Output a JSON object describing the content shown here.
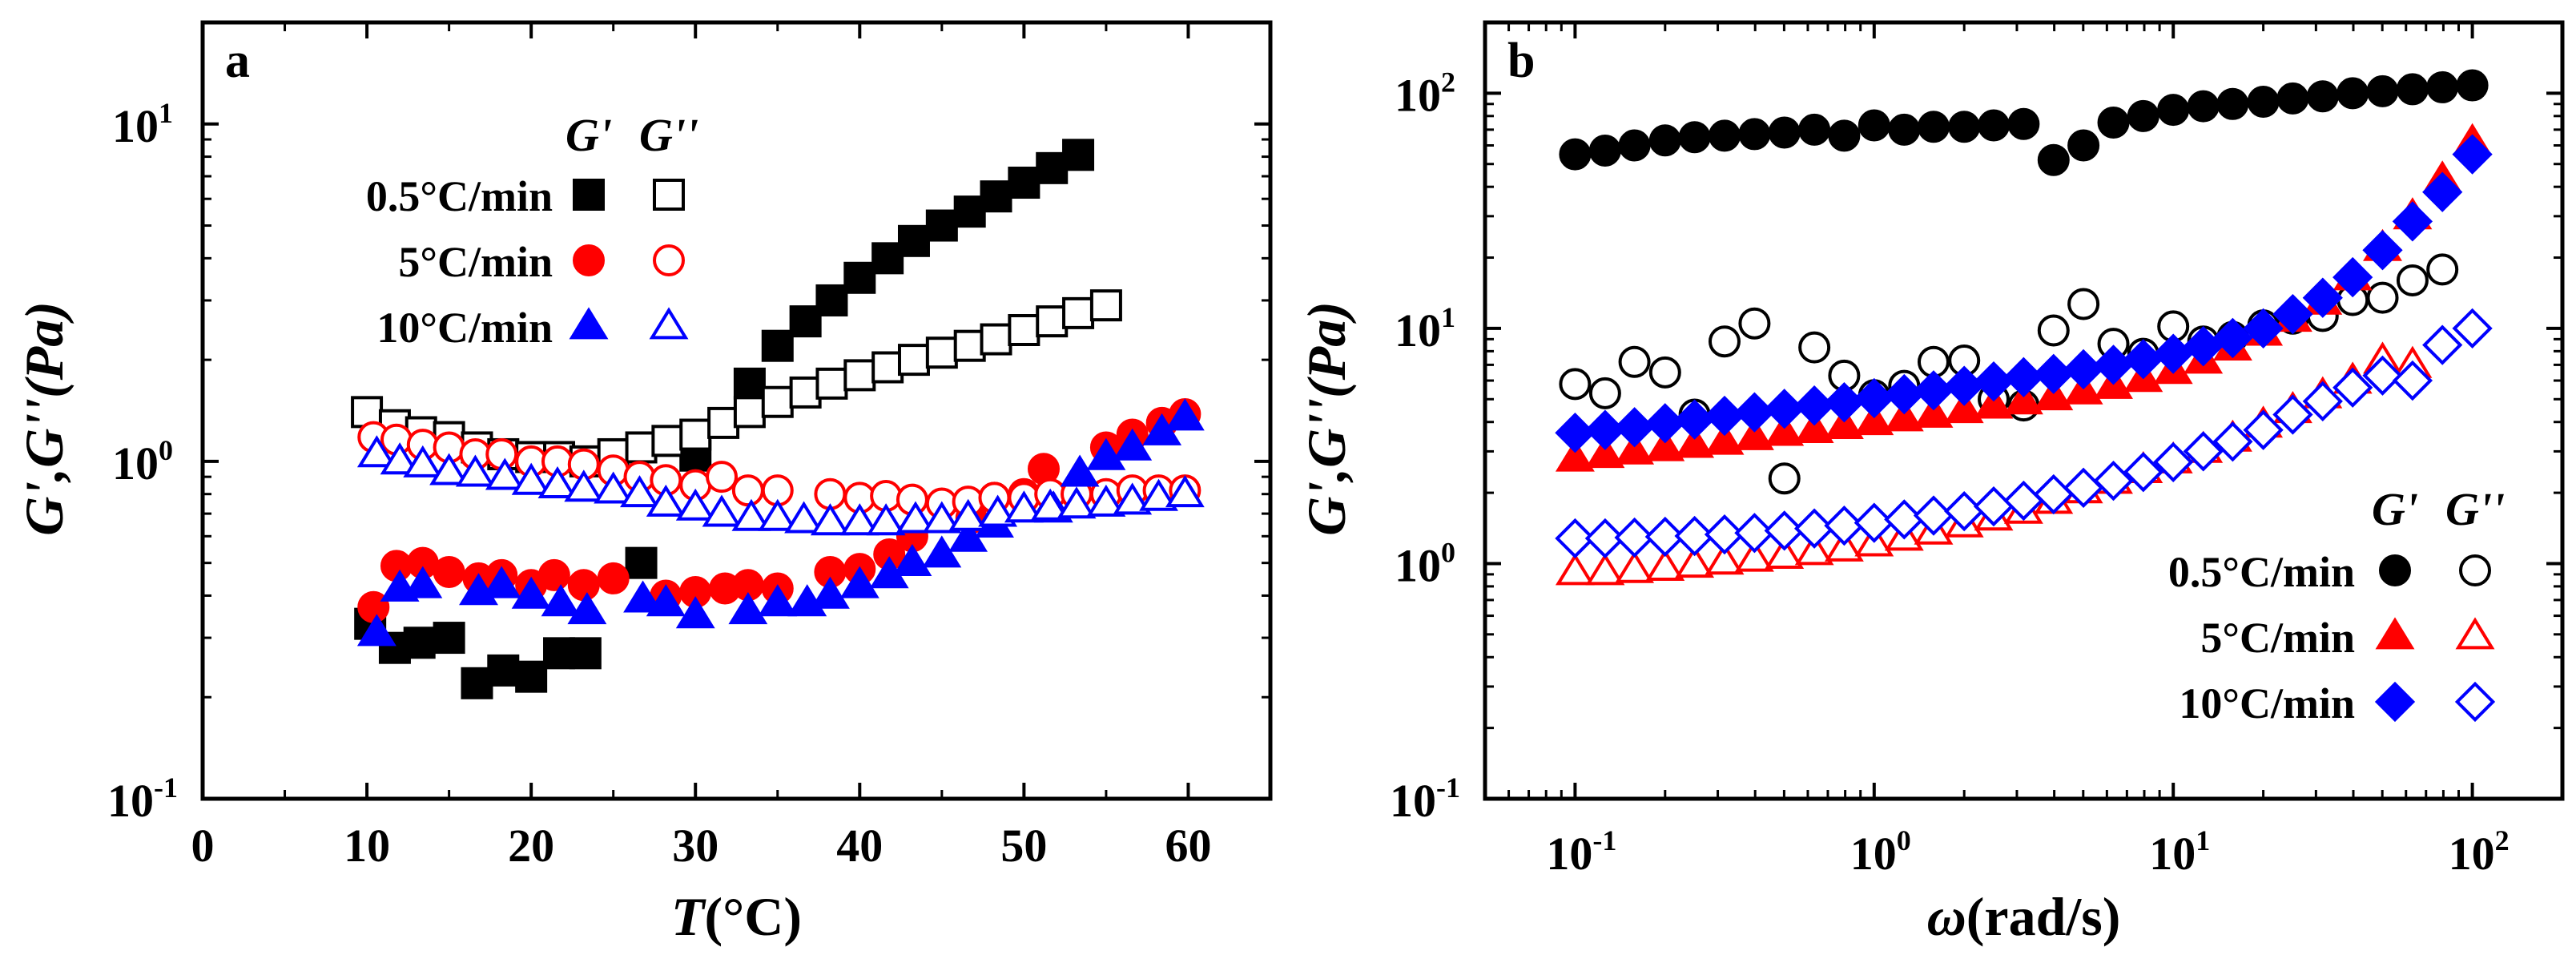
{
  "chart_data": [
    {
      "type": "scatter",
      "panel_label": "a",
      "xlabel_var": "T",
      "xlabel_unit": "(°C)",
      "ylabel": "G',G''(Pa)",
      "xscale": "linear",
      "yscale": "log",
      "xlim": [
        0,
        65
      ],
      "ylim": [
        0.1,
        20
      ],
      "xticks": [
        0,
        10,
        20,
        30,
        40,
        50,
        60
      ],
      "xtick_labels": [
        "0",
        "10",
        "20",
        "30",
        "40",
        "50",
        "60"
      ],
      "yticks": [
        0.1,
        1,
        10
      ],
      "ytick_labels": [
        {
          "base": "10",
          "exp": "-1"
        },
        {
          "base": "10",
          "exp": "0"
        },
        {
          "base": "10",
          "exp": "1"
        }
      ],
      "legend_headers": [
        "G'",
        "G''"
      ],
      "legend_position": "top-left",
      "series": [
        {
          "name": "0.5°C/min",
          "modulus": "G'",
          "marker": "square",
          "filled": true,
          "color": "#000000",
          "x": [
            10.2,
            11.7,
            13.2,
            15.0,
            16.7,
            18.3,
            20.0,
            21.7,
            23.3,
            26.7,
            30.0,
            33.3,
            35.0,
            36.7,
            38.3,
            40.0,
            41.7,
            43.3,
            45.0,
            46.7,
            48.3,
            50.0,
            51.7,
            53.3
          ],
          "y": [
            0.33,
            0.28,
            0.29,
            0.3,
            0.22,
            0.24,
            0.23,
            0.27,
            0.27,
            0.5,
            1.04,
            1.7,
            2.2,
            2.6,
            3.0,
            3.5,
            4.0,
            4.5,
            5.0,
            5.5,
            6.1,
            6.7,
            7.4,
            8.1
          ]
        },
        {
          "name": "0.5°C/min",
          "modulus": "G''",
          "marker": "square",
          "filled": false,
          "color": "#000000",
          "x": [
            10.0,
            11.7,
            13.3,
            15.0,
            16.7,
            18.3,
            20.0,
            21.7,
            23.3,
            25.0,
            26.7,
            28.3,
            30.0,
            31.7,
            33.3,
            35.0,
            36.7,
            38.3,
            40.0,
            41.7,
            43.3,
            45.0,
            46.7,
            48.3,
            50.0,
            51.7,
            53.3,
            55.0
          ],
          "y": [
            1.4,
            1.28,
            1.22,
            1.18,
            1.1,
            1.05,
            1.03,
            1.03,
            1.0,
            1.05,
            1.1,
            1.15,
            1.2,
            1.3,
            1.4,
            1.5,
            1.6,
            1.7,
            1.8,
            1.9,
            2.0,
            2.1,
            2.2,
            2.3,
            2.45,
            2.6,
            2.75,
            2.9
          ]
        },
        {
          "name": "5°C/min",
          "modulus": "G'",
          "marker": "circle",
          "filled": true,
          "color": "#ff0000",
          "x": [
            10.4,
            11.8,
            13.4,
            15.0,
            16.8,
            18.2,
            20.0,
            21.4,
            23.2,
            25.0,
            28.2,
            30.0,
            31.8,
            33.2,
            35.0,
            38.2,
            40.0,
            41.8,
            43.2,
            46.8,
            48.2,
            50.0,
            51.2,
            55.0,
            56.6,
            58.4,
            59.8
          ],
          "y": [
            0.37,
            0.49,
            0.5,
            0.47,
            0.45,
            0.46,
            0.43,
            0.46,
            0.43,
            0.45,
            0.4,
            0.41,
            0.42,
            0.43,
            0.42,
            0.47,
            0.48,
            0.53,
            0.6,
            0.68,
            0.78,
            0.8,
            0.95,
            1.1,
            1.2,
            1.3,
            1.38
          ]
        },
        {
          "name": "5°C/min",
          "modulus": "G''",
          "marker": "circle",
          "filled": false,
          "color": "#ff0000",
          "x": [
            10.4,
            11.8,
            13.4,
            15.0,
            16.6,
            18.2,
            20.0,
            21.6,
            23.2,
            25.0,
            26.6,
            28.2,
            30.0,
            31.6,
            33.2,
            35.0,
            38.2,
            40.0,
            41.6,
            43.2,
            45.0,
            46.6,
            48.2,
            50.0,
            51.6,
            53.2,
            55.0,
            56.6,
            58.2,
            59.8
          ],
          "y": [
            1.18,
            1.16,
            1.12,
            1.1,
            1.05,
            1.05,
            1.0,
            1.0,
            0.98,
            0.94,
            0.9,
            0.88,
            0.85,
            0.9,
            0.82,
            0.82,
            0.8,
            0.78,
            0.79,
            0.77,
            0.75,
            0.76,
            0.78,
            0.78,
            0.8,
            0.8,
            0.8,
            0.82,
            0.82,
            0.82
          ]
        },
        {
          "name": "10°C/min",
          "modulus": "G'",
          "marker": "triangle",
          "filled": true,
          "color": "#0000ff",
          "x": [
            10.6,
            12.0,
            13.4,
            16.8,
            18.2,
            20.0,
            21.8,
            23.4,
            26.8,
            28.2,
            30.0,
            33.2,
            35.0,
            36.8,
            38.2,
            40.0,
            41.8,
            43.2,
            45.0,
            46.6,
            48.2,
            51.8,
            53.4,
            55.0,
            56.6,
            58.4,
            59.8
          ],
          "y": [
            0.31,
            0.42,
            0.43,
            0.41,
            0.43,
            0.4,
            0.38,
            0.36,
            0.39,
            0.38,
            0.35,
            0.36,
            0.38,
            0.38,
            0.4,
            0.43,
            0.46,
            0.5,
            0.53,
            0.59,
            0.65,
            0.72,
            0.92,
            1.03,
            1.1,
            1.22,
            1.35
          ]
        },
        {
          "name": "10°C/min",
          "modulus": "G''",
          "marker": "triangle",
          "filled": false,
          "color": "#0000ff",
          "x": [
            10.6,
            12.0,
            13.4,
            15.0,
            16.6,
            18.4,
            20.0,
            21.6,
            23.2,
            25.0,
            26.6,
            28.2,
            30.0,
            31.6,
            33.4,
            35.0,
            36.6,
            38.2,
            40.0,
            41.6,
            43.4,
            45.0,
            46.6,
            48.4,
            50.0,
            51.6,
            53.2,
            55.0,
            56.6,
            58.2,
            59.8
          ],
          "y": [
            1.05,
            1.0,
            0.98,
            0.93,
            0.92,
            0.9,
            0.87,
            0.85,
            0.83,
            0.82,
            0.8,
            0.75,
            0.73,
            0.7,
            0.68,
            0.68,
            0.67,
            0.66,
            0.66,
            0.66,
            0.67,
            0.67,
            0.68,
            0.7,
            0.72,
            0.73,
            0.74,
            0.75,
            0.76,
            0.78,
            0.8
          ]
        }
      ]
    },
    {
      "type": "scatter",
      "panel_label": "b",
      "xlabel_var": "ω",
      "xlabel_unit": "(rad/s)",
      "ylabel": "G',G''(Pa)",
      "xscale": "log",
      "yscale": "log",
      "xlim": [
        0.05,
        200
      ],
      "ylim": [
        0.1,
        200
      ],
      "xticks": [
        0.1,
        1,
        10,
        100
      ],
      "xtick_labels": [
        {
          "base": "10",
          "exp": "-1"
        },
        {
          "base": "10",
          "exp": "0"
        },
        {
          "base": "10",
          "exp": "1"
        },
        {
          "base": "10",
          "exp": "2"
        }
      ],
      "yticks": [
        0.1,
        1,
        10,
        100
      ],
      "ytick_labels": [
        {
          "base": "10",
          "exp": "-1"
        },
        {
          "base": "10",
          "exp": "0"
        },
        {
          "base": "10",
          "exp": "1"
        },
        {
          "base": "10",
          "exp": "2"
        }
      ],
      "legend_headers": [
        "G'",
        "G''"
      ],
      "legend_position": "bottom-right",
      "series": [
        {
          "name": "0.5°C/min",
          "modulus": "G'",
          "marker": "circle",
          "filled": true,
          "color": "#000000",
          "x": [
            0.1,
            0.126,
            0.158,
            0.2,
            0.251,
            0.316,
            0.398,
            0.501,
            0.631,
            0.794,
            1.0,
            1.26,
            1.58,
            2.0,
            2.51,
            3.16,
            3.98,
            5.01,
            6.31,
            7.94,
            10.0,
            12.6,
            15.8,
            20.0,
            25.1,
            31.6,
            39.8,
            50.1,
            63.1,
            79.4,
            100
          ],
          "y": [
            55,
            57,
            60,
            63,
            65,
            66,
            67,
            68,
            70,
            66,
            73,
            70,
            72,
            72,
            73,
            74,
            52,
            60,
            75,
            80,
            85,
            88,
            90,
            92,
            95,
            97,
            100,
            102,
            104,
            106,
            108
          ]
        },
        {
          "name": "0.5°C/min",
          "modulus": "G''",
          "marker": "circle",
          "filled": false,
          "color": "#000000",
          "x": [
            0.1,
            0.126,
            0.158,
            0.2,
            0.251,
            0.316,
            0.398,
            0.501,
            0.631,
            0.794,
            1.0,
            1.26,
            1.58,
            2.0,
            2.51,
            3.16,
            3.98,
            5.01,
            6.31,
            7.94,
            10.0,
            12.6,
            15.8,
            20.0,
            25.1,
            31.6,
            39.8,
            50.1,
            63.1,
            79.4
          ],
          "y": [
            5.8,
            5.3,
            7.2,
            6.5,
            4.3,
            8.8,
            10.5,
            2.3,
            8.3,
            6.3,
            5.2,
            5.7,
            7.2,
            7.3,
            5.0,
            4.7,
            9.8,
            12.7,
            8.6,
            7.8,
            10.2,
            8.8,
            9.2,
            10.3,
            11.0,
            11.3,
            13.2,
            13.5,
            16.0,
            17.8
          ]
        },
        {
          "name": "5°C/min",
          "modulus": "G'",
          "marker": "triangle",
          "filled": true,
          "color": "#ff0000",
          "x": [
            0.1,
            0.126,
            0.158,
            0.2,
            0.251,
            0.316,
            0.398,
            0.501,
            0.631,
            0.794,
            1.0,
            1.26,
            1.58,
            2.0,
            2.51,
            3.16,
            3.98,
            5.01,
            6.31,
            7.94,
            10.0,
            12.6,
            15.8,
            20.0,
            25.1,
            31.6,
            39.8,
            50.1,
            63.1,
            79.4,
            100
          ],
          "y": [
            2.8,
            2.9,
            3.0,
            3.1,
            3.2,
            3.3,
            3.45,
            3.6,
            3.7,
            3.85,
            4.0,
            4.15,
            4.3,
            4.5,
            4.7,
            4.9,
            5.1,
            5.4,
            5.7,
            6.1,
            6.6,
            7.3,
            8.3,
            9.6,
            11.0,
            13.0,
            16.5,
            22.0,
            30.0,
            43.0,
            62.0
          ]
        },
        {
          "name": "5°C/min",
          "modulus": "G''",
          "marker": "triangle",
          "filled": false,
          "color": "#ff0000",
          "x": [
            0.1,
            0.126,
            0.158,
            0.2,
            0.251,
            0.316,
            0.398,
            0.501,
            0.631,
            0.794,
            1.0,
            1.26,
            1.58,
            2.0,
            2.51,
            3.16,
            3.98,
            5.01,
            6.31,
            7.94,
            10.0,
            12.6,
            15.8,
            20.0,
            25.1,
            31.6,
            39.8,
            50.1,
            63.1
          ],
          "y": [
            0.92,
            0.92,
            0.94,
            0.96,
            0.99,
            1.02,
            1.05,
            1.08,
            1.12,
            1.16,
            1.22,
            1.29,
            1.37,
            1.47,
            1.57,
            1.68,
            1.85,
            2.05,
            2.25,
            2.5,
            2.75,
            3.05,
            3.4,
            3.9,
            4.5,
            5.2,
            6.0,
            7.3,
            7.0
          ]
        },
        {
          "name": "10°C/min",
          "modulus": "G'",
          "marker": "diamond",
          "filled": true,
          "color": "#0000ff",
          "x": [
            0.1,
            0.126,
            0.158,
            0.2,
            0.251,
            0.316,
            0.398,
            0.501,
            0.631,
            0.794,
            1.0,
            1.26,
            1.58,
            2.0,
            2.51,
            3.16,
            3.98,
            5.01,
            6.31,
            7.94,
            10.0,
            12.6,
            15.8,
            20.0,
            25.1,
            31.6,
            39.8,
            50.1,
            63.1,
            79.4,
            100
          ],
          "y": [
            3.6,
            3.7,
            3.8,
            3.95,
            4.1,
            4.25,
            4.4,
            4.55,
            4.7,
            4.85,
            5.05,
            5.25,
            5.45,
            5.7,
            5.95,
            6.2,
            6.4,
            6.7,
            7.0,
            7.4,
            7.8,
            8.4,
            9.1,
            10.0,
            11.5,
            13.5,
            16.5,
            21.5,
            28.5,
            38.0,
            55.0
          ]
        },
        {
          "name": "10°C/min",
          "modulus": "G''",
          "marker": "diamond",
          "filled": false,
          "color": "#0000ff",
          "x": [
            0.1,
            0.126,
            0.158,
            0.2,
            0.251,
            0.316,
            0.398,
            0.501,
            0.631,
            0.794,
            1.0,
            1.26,
            1.58,
            2.0,
            2.51,
            3.16,
            3.98,
            5.01,
            6.31,
            7.94,
            10.0,
            12.6,
            15.8,
            20.0,
            25.1,
            31.6,
            39.8,
            50.1,
            63.1,
            79.4,
            100
          ],
          "y": [
            1.28,
            1.28,
            1.29,
            1.3,
            1.31,
            1.33,
            1.35,
            1.38,
            1.41,
            1.45,
            1.49,
            1.54,
            1.6,
            1.67,
            1.75,
            1.85,
            1.97,
            2.1,
            2.25,
            2.45,
            2.7,
            3.0,
            3.3,
            3.7,
            4.3,
            4.9,
            5.6,
            6.3,
            6.0,
            8.5,
            10.0
          ]
        }
      ]
    }
  ]
}
